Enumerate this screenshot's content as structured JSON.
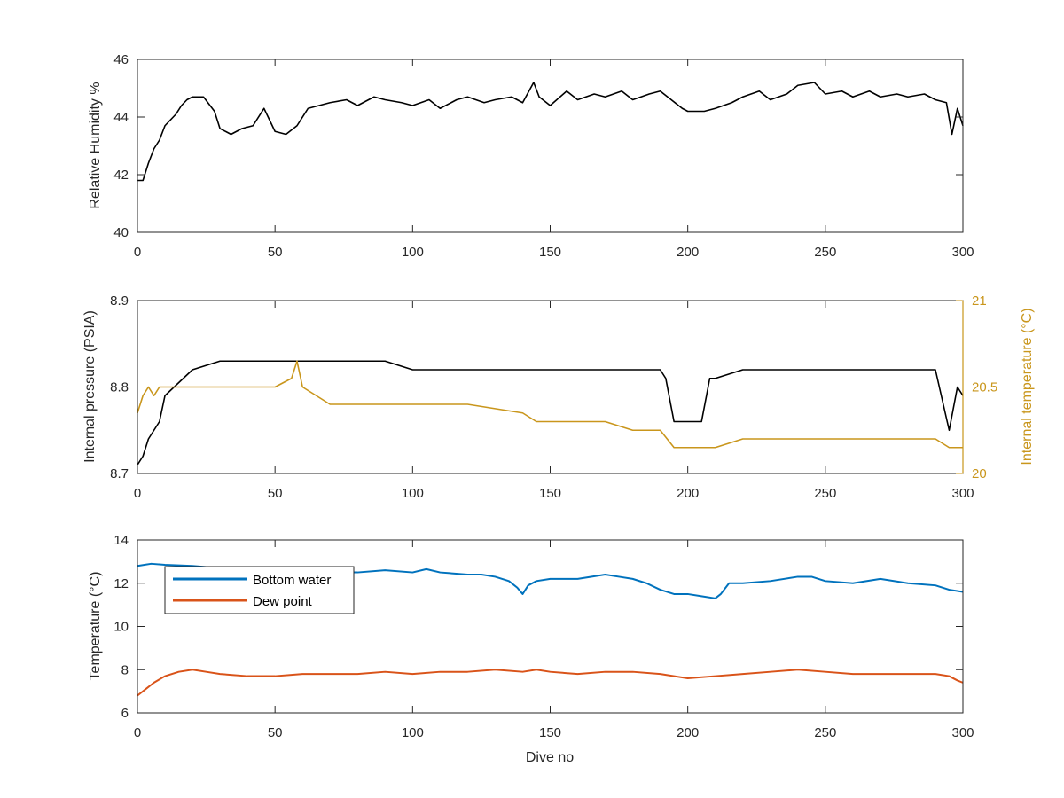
{
  "colors": {
    "axis": "#262626",
    "black_series": "#000000",
    "bottom_water": "#0072BD",
    "dew_point": "#D95319",
    "internal_temp": "#C9961C"
  },
  "chart_data": [
    {
      "type": "line",
      "xlabel": "",
      "ylabel": "Relative Humidity %",
      "xlim": [
        0,
        300
      ],
      "ylim": [
        40,
        46
      ],
      "xticks": [
        0,
        50,
        100,
        150,
        200,
        250,
        300
      ],
      "yticks": [
        40,
        42,
        44,
        46
      ],
      "grid": false,
      "series": [
        {
          "x": [
            0,
            2,
            4,
            6,
            8,
            10,
            12,
            14,
            16,
            18,
            20,
            24,
            28,
            30,
            34,
            38,
            42,
            46,
            50,
            54,
            58,
            62,
            66,
            70,
            76,
            80,
            86,
            90,
            96,
            100,
            106,
            110,
            116,
            120,
            126,
            130,
            136,
            140,
            144,
            146,
            150,
            156,
            160,
            166,
            170,
            176,
            180,
            186,
            190,
            194,
            198,
            200,
            206,
            210,
            216,
            220,
            226,
            230,
            236,
            240,
            246,
            250,
            256,
            260,
            266,
            270,
            276,
            280,
            286,
            290,
            294,
            296,
            298,
            300
          ],
          "y": [
            41.8,
            41.8,
            42.4,
            42.9,
            43.2,
            43.7,
            43.9,
            44.1,
            44.4,
            44.6,
            44.7,
            44.7,
            44.2,
            43.6,
            43.4,
            43.6,
            43.7,
            44.3,
            43.5,
            43.4,
            43.7,
            44.3,
            44.4,
            44.5,
            44.6,
            44.4,
            44.7,
            44.6,
            44.5,
            44.4,
            44.6,
            44.3,
            44.6,
            44.7,
            44.5,
            44.6,
            44.7,
            44.5,
            45.2,
            44.7,
            44.4,
            44.9,
            44.6,
            44.8,
            44.7,
            44.9,
            44.6,
            44.8,
            44.9,
            44.6,
            44.3,
            44.2,
            44.2,
            44.3,
            44.5,
            44.7,
            44.9,
            44.6,
            44.8,
            45.1,
            45.2,
            44.8,
            44.9,
            44.7,
            44.9,
            44.7,
            44.8,
            44.7,
            44.8,
            44.6,
            44.5,
            43.4,
            44.3,
            43.7
          ]
        }
      ]
    },
    {
      "type": "line",
      "xlabel": "",
      "ylabel": "Internal pressure (PSIA)",
      "ylabel_right": "Internal temperature (°C)",
      "xlim": [
        0,
        300
      ],
      "ylim": [
        8.7,
        8.9
      ],
      "ylim_right": [
        20,
        21
      ],
      "xticks": [
        0,
        50,
        100,
        150,
        200,
        250,
        300
      ],
      "yticks": [
        8.7,
        8.8,
        8.9
      ],
      "yticks_right": [
        20,
        20.5,
        21
      ],
      "grid": false,
      "series": [
        {
          "axis": "left",
          "x": [
            0,
            2,
            4,
            6,
            8,
            10,
            20,
            30,
            60,
            90,
            100,
            120,
            140,
            150,
            170,
            190,
            192,
            195,
            200,
            205,
            208,
            210,
            220,
            240,
            260,
            280,
            290,
            295,
            298,
            300
          ],
          "y": [
            8.71,
            8.72,
            8.74,
            8.75,
            8.76,
            8.79,
            8.82,
            8.83,
            8.83,
            8.83,
            8.82,
            8.82,
            8.82,
            8.82,
            8.82,
            8.82,
            8.81,
            8.76,
            8.76,
            8.76,
            8.81,
            8.81,
            8.82,
            8.82,
            8.82,
            8.82,
            8.82,
            8.75,
            8.8,
            8.79
          ]
        },
        {
          "axis": "right",
          "x": [
            0,
            2,
            4,
            6,
            8,
            12,
            20,
            30,
            40,
            50,
            56,
            58,
            60,
            70,
            80,
            100,
            120,
            140,
            145,
            150,
            160,
            170,
            180,
            190,
            195,
            200,
            210,
            220,
            230,
            240,
            250,
            260,
            270,
            280,
            290,
            295,
            300
          ],
          "y": [
            20.35,
            20.45,
            20.5,
            20.45,
            20.5,
            20.5,
            20.5,
            20.5,
            20.5,
            20.5,
            20.55,
            20.65,
            20.5,
            20.4,
            20.4,
            20.4,
            20.4,
            20.35,
            20.3,
            20.3,
            20.3,
            20.3,
            20.25,
            20.25,
            20.15,
            20.15,
            20.15,
            20.2,
            20.2,
            20.2,
            20.2,
            20.2,
            20.2,
            20.2,
            20.2,
            20.15,
            20.15
          ]
        }
      ]
    },
    {
      "type": "line",
      "xlabel": "Dive no",
      "ylabel": "Temperature (°C)",
      "xlim": [
        0,
        300
      ],
      "ylim": [
        6,
        14
      ],
      "xticks": [
        0,
        50,
        100,
        150,
        200,
        250,
        300
      ],
      "yticks": [
        6,
        8,
        10,
        12,
        14
      ],
      "grid": false,
      "legend_position": "top-left",
      "series": [
        {
          "name": "Bottom water",
          "x": [
            0,
            5,
            10,
            20,
            30,
            40,
            50,
            60,
            70,
            80,
            90,
            100,
            105,
            110,
            120,
            125,
            130,
            135,
            138,
            140,
            142,
            145,
            150,
            160,
            170,
            175,
            180,
            185,
            190,
            195,
            200,
            205,
            210,
            212,
            215,
            220,
            230,
            240,
            245,
            250,
            260,
            270,
            280,
            290,
            295,
            300
          ],
          "y": [
            12.8,
            12.9,
            12.85,
            12.8,
            12.7,
            12.7,
            12.6,
            12.5,
            12.5,
            12.5,
            12.6,
            12.5,
            12.65,
            12.5,
            12.4,
            12.4,
            12.3,
            12.1,
            11.8,
            11.5,
            11.9,
            12.1,
            12.2,
            12.2,
            12.4,
            12.3,
            12.2,
            12.0,
            11.7,
            11.5,
            11.5,
            11.4,
            11.3,
            11.5,
            12.0,
            12.0,
            12.1,
            12.3,
            12.3,
            12.1,
            12.0,
            12.2,
            12.0,
            11.9,
            11.7,
            11.6
          ]
        },
        {
          "name": "Dew point",
          "x": [
            0,
            3,
            6,
            10,
            15,
            20,
            25,
            30,
            40,
            50,
            60,
            70,
            80,
            90,
            100,
            110,
            120,
            130,
            140,
            145,
            150,
            160,
            170,
            180,
            190,
            200,
            210,
            220,
            230,
            240,
            250,
            260,
            270,
            280,
            290,
            295,
            298,
            300
          ],
          "y": [
            6.8,
            7.1,
            7.4,
            7.7,
            7.9,
            8.0,
            7.9,
            7.8,
            7.7,
            7.7,
            7.8,
            7.8,
            7.8,
            7.9,
            7.8,
            7.9,
            7.9,
            8.0,
            7.9,
            8.0,
            7.9,
            7.8,
            7.9,
            7.9,
            7.8,
            7.6,
            7.7,
            7.8,
            7.9,
            8.0,
            7.9,
            7.8,
            7.8,
            7.8,
            7.8,
            7.7,
            7.5,
            7.4
          ]
        }
      ]
    }
  ]
}
